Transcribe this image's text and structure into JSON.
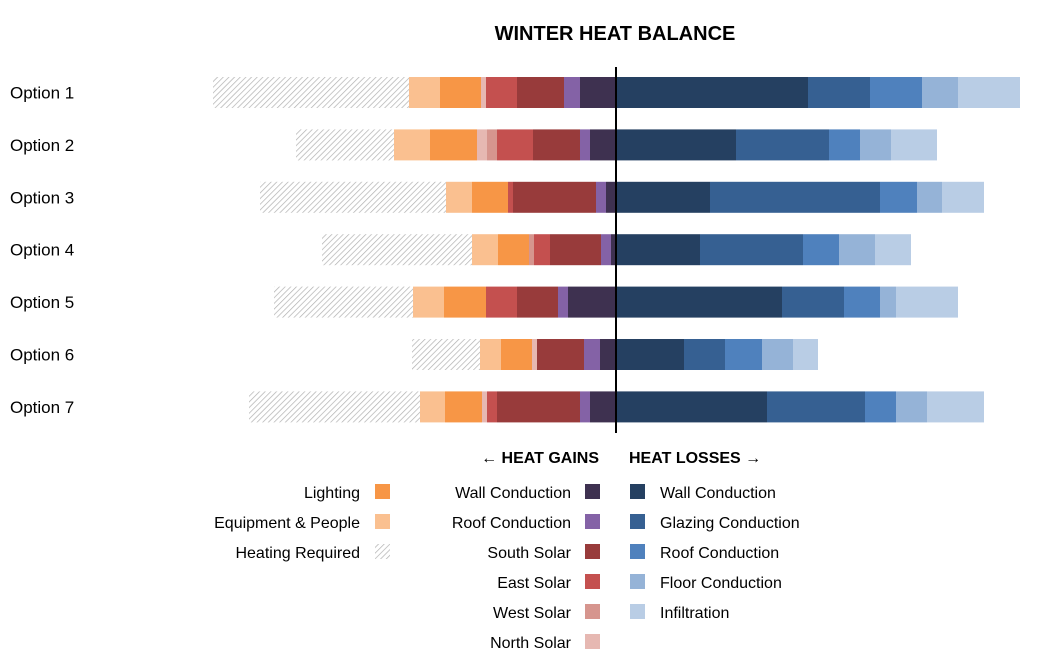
{
  "chart_data": {
    "type": "bar",
    "subtype": "diverging-stacked-bar",
    "title": "WINTER HEAT BALANCE",
    "gains_label": "← HEAT GAINS",
    "losses_label": "HEAT LOSSES →",
    "categories": [
      "Option 1",
      "Option 2",
      "Option 3",
      "Option 4",
      "Option 5",
      "Option 6",
      "Option 7"
    ],
    "gain_series": [
      {
        "name": "Wall Conduction",
        "color": "#3e3150",
        "values": [
          36,
          26,
          10,
          5,
          48,
          16,
          26
        ]
      },
      {
        "name": "Roof Conduction",
        "color": "#8462a6",
        "values": [
          16,
          10,
          10,
          10,
          10,
          16,
          10
        ]
      },
      {
        "name": "South Solar",
        "color": "#983b3b",
        "values": [
          47,
          47,
          83,
          51,
          41,
          47,
          83
        ]
      },
      {
        "name": "East Solar",
        "color": "#c4504f",
        "values": [
          31,
          36,
          5,
          16,
          31,
          0,
          10
        ]
      },
      {
        "name": "West Solar",
        "color": "#d6958e",
        "values": [
          0,
          10,
          0,
          5,
          0,
          0,
          0
        ]
      },
      {
        "name": "North Solar",
        "color": "#e6b8b2",
        "values": [
          5,
          10,
          0,
          0,
          0,
          5,
          5
        ]
      },
      {
        "name": "Lighting",
        "color": "#f79646",
        "values": [
          41,
          47,
          36,
          31,
          42,
          31,
          37
        ]
      },
      {
        "name": "Equipment & People",
        "color": "#fac090",
        "values": [
          31,
          36,
          26,
          26,
          31,
          21,
          25
        ]
      },
      {
        "name": "Heating Required",
        "color": "hatch",
        "values": [
          196,
          98,
          186,
          150,
          139,
          68,
          171
        ]
      }
    ],
    "loss_series": [
      {
        "name": "Wall Conduction",
        "color": "#254061",
        "values": [
          192,
          120,
          94,
          84,
          166,
          68,
          151
        ]
      },
      {
        "name": "Glazing Conduction",
        "color": "#366092",
        "values": [
          62,
          93,
          170,
          103,
          62,
          41,
          98
        ]
      },
      {
        "name": "Roof Conduction",
        "color": "#4f81bd",
        "values": [
          52,
          31,
          37,
          36,
          36,
          37,
          31
        ]
      },
      {
        "name": "Floor Conduction",
        "color": "#95b3d7",
        "values": [
          36,
          31,
          25,
          36,
          16,
          31,
          31
        ]
      },
      {
        "name": "Infiltration",
        "color": "#b9cde5",
        "values": [
          62,
          46,
          42,
          36,
          62,
          25,
          57
        ]
      }
    ],
    "legend_left": [
      "Lighting",
      "Equipment & People",
      "Heating Required"
    ],
    "legend_middle": [
      "Wall Conduction",
      "Roof Conduction",
      "South Solar",
      "East Solar",
      "West Solar",
      "North Solar"
    ],
    "legend_right": [
      "Wall Conduction",
      "Glazing Conduction",
      "Roof Conduction",
      "Floor Conduction",
      "Infiltration"
    ],
    "grid": false
  }
}
